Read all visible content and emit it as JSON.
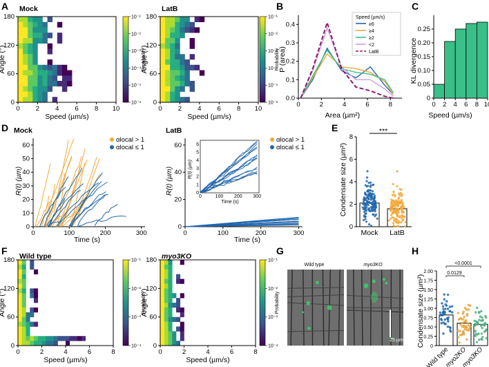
{
  "panel_letters": [
    "A",
    "B",
    "C",
    "D",
    "E",
    "F",
    "G",
    "H"
  ],
  "colors": {
    "orange": "#f2a93b",
    "blue": "#2166ac",
    "purple": "#4b2a7b",
    "green": "#3bbf88",
    "lavender": "#c9a0dc",
    "yellow": "#c9b73a",
    "teal": "#2a9d8f"
  },
  "panel_a": {
    "titles": [
      "Mock",
      "LatB"
    ],
    "xlabel": "Speed (µm/s)",
    "ylabel": "Angle (°)",
    "xticks": [
      "0",
      "2",
      "4",
      "6",
      "8",
      "10"
    ],
    "yticks": [
      "0",
      "60",
      "120",
      "180"
    ],
    "colorbar_label": "Probability",
    "colorbar_ticks": [
      "10⁻¹",
      "10⁻²",
      "10⁻³",
      "10⁻⁴",
      "10⁻⁵",
      "10⁻⁶"
    ]
  },
  "chart_data": [
    {
      "panel": "B",
      "type": "line",
      "xlabel": "Area (µm²)",
      "ylabel": "P (area)",
      "xlim": [
        0,
        9
      ],
      "ylim": [
        0,
        0.45
      ],
      "xticks": [
        "0",
        "2",
        "4",
        "6",
        "8"
      ],
      "yticks": [
        "0.0",
        "0.1",
        "0.2",
        "0.3",
        "0.4"
      ],
      "legend_title": "Speed (µm/s)",
      "x": [
        0.2,
        1.25,
        2.5,
        3.75,
        5.0,
        6.25,
        7.5,
        8.25
      ],
      "series": [
        {
          "name": "≥6",
          "values": [
            0.0,
            0.1,
            0.27,
            0.15,
            0.11,
            0.17,
            0.07,
            0.02
          ]
        },
        {
          "name": "≥4",
          "values": [
            0.0,
            0.11,
            0.24,
            0.17,
            0.16,
            0.14,
            0.09,
            0.02
          ]
        },
        {
          "name": "≥2",
          "values": [
            0.0,
            0.12,
            0.26,
            0.16,
            0.14,
            0.13,
            0.1,
            0.03
          ]
        },
        {
          "name": "<2",
          "values": [
            0.0,
            0.15,
            0.38,
            0.17,
            0.1,
            0.1,
            0.05,
            0.01
          ]
        },
        {
          "name": "LatB",
          "values": [
            0.0,
            0.16,
            0.41,
            0.16,
            0.06,
            0.04,
            0.01,
            0.0
          ]
        }
      ]
    },
    {
      "panel": "C",
      "type": "bar",
      "xlabel": "Speed (µm/s)",
      "ylabel": "KL divergence",
      "categories": [
        "0-2",
        "2-4",
        "4-6",
        "6-8",
        "8-10"
      ],
      "xticks": [
        "0",
        "2",
        "4",
        "6",
        "8",
        "10"
      ],
      "yticks": [
        "0",
        "0.05",
        "0.10",
        "0.15",
        "0.20",
        "0.25"
      ],
      "values": [
        0.05,
        0.205,
        0.25,
        0.27,
        0.275
      ],
      "ylim": [
        0,
        0.3
      ]
    },
    {
      "panel": "E",
      "type": "scatter",
      "ylabel": "Condensate size (µm²)",
      "categories": [
        "Mock",
        "LatB"
      ],
      "means": [
        2.1,
        1.6
      ],
      "ylim": [
        0,
        8
      ],
      "yticks": [
        "0",
        "2",
        "4",
        "6",
        "8"
      ],
      "significance": "***"
    },
    {
      "panel": "H",
      "type": "scatter",
      "ylabel": "Condensate size (µm²)",
      "categories": [
        "Wild type",
        "myo2KO",
        "myo3KO"
      ],
      "means": [
        0.82,
        0.6,
        0.57
      ],
      "ylim": [
        0,
        2.0
      ],
      "yticks": [
        "0",
        "0.25",
        "0.50",
        "0.75",
        "1.00",
        "1.25",
        "1.50",
        "1.75",
        "2.00"
      ],
      "pvalues": [
        "0.0129",
        "<0.0001"
      ]
    }
  ],
  "panel_d": {
    "titles": [
      "Mock",
      "LatB"
    ],
    "xlabel": "Time (s)",
    "ylabel": "R(t) (µm)",
    "xticks": [
      "0",
      "100",
      "200",
      "300"
    ],
    "yticks_left": [
      "0",
      "10",
      "20",
      "30",
      "40",
      "50",
      "60"
    ],
    "yticks_right": [
      "0",
      "20",
      "40",
      "60"
    ],
    "legend": [
      "αlocal > 1",
      "αlocal ≤ 1"
    ],
    "inset_xlabel": "Time (s)",
    "inset_ylabel": "R(t) (µm)",
    "inset_xticks": [
      "0",
      "100",
      "200",
      "300"
    ],
    "inset_yticks": [
      "0",
      "1",
      "2",
      "3",
      "4",
      "5",
      "6"
    ]
  },
  "panel_f": {
    "titles": [
      "Wild type",
      "myo3KO"
    ],
    "xlabel": "Speed (µm/s)",
    "ylabel": "Angle (°)",
    "xticks": [
      "0",
      "2",
      "4",
      "6",
      "8"
    ],
    "yticks": [
      "0",
      "60",
      "120",
      "180"
    ],
    "colorbar_label": "Probability",
    "colorbar_ticks": [
      "10⁻¹",
      "10⁻²",
      "10⁻³",
      "10⁻⁴"
    ]
  },
  "panel_g": {
    "titles": [
      "Wild type",
      "myo3KO"
    ],
    "scalebar": "25 µm"
  }
}
